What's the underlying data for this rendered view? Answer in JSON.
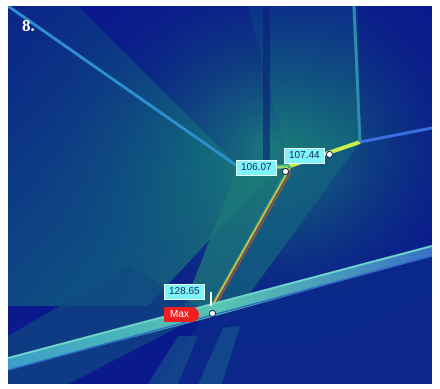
{
  "step_number": "8.",
  "stress_labels": [
    "106.07",
    "107.44",
    "128.65"
  ],
  "max_label": "Max",
  "colors": {
    "background": "#0a1a8c",
    "label_fill": "#7ff4f7",
    "max_fill": "#ee1f1f",
    "hot_weld": "#c9f04a"
  }
}
